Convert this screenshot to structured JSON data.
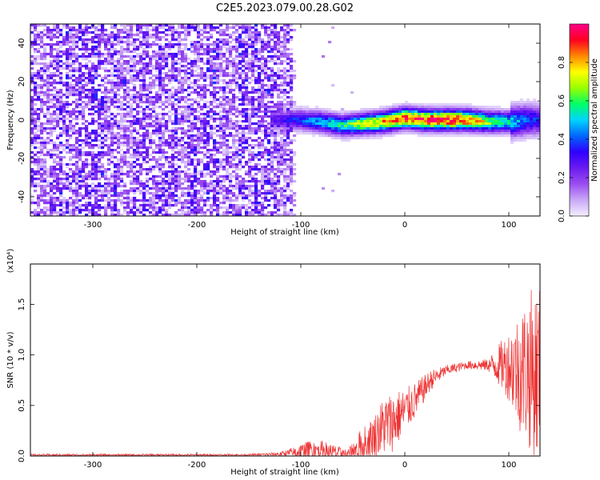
{
  "title": "C2E5.2023.079.00.28.G02",
  "chart_data": [
    {
      "type": "heatmap",
      "xlabel": "Height of straight line (km)",
      "ylabel": "Frequency (Hz)",
      "xlim": [
        -360,
        130
      ],
      "ylim": [
        -50,
        50
      ],
      "xticks": [
        -300,
        -200,
        -100,
        0,
        100
      ],
      "yticks": [
        -40,
        -20,
        0,
        20,
        40
      ],
      "colorbar": {
        "label": "Normalized spectral amplitude",
        "range": [
          0,
          1
        ],
        "ticks": [
          0.0,
          0.2,
          0.4,
          0.6,
          0.8
        ],
        "tick_labels": [
          "0.0",
          "0.2",
          "0.4",
          "0.6",
          "0.8"
        ],
        "colormap": [
          "#f4f0ff",
          "#c9a8f7",
          "#9b4df0",
          "#6a1bf0",
          "#2f00ff",
          "#0066ff",
          "#00d4ff",
          "#00ff66",
          "#99ff00",
          "#ffff00",
          "#ff8800",
          "#ff0022",
          "#ff0088"
        ]
      },
      "noise_region_x": [
        -360,
        -108
      ],
      "signal_band": {
        "x": [
          -128,
          -100,
          -80,
          -60,
          -40,
          -20,
          0,
          20,
          40,
          60,
          80,
          100,
          120,
          130
        ],
        "center_hz": [
          0,
          0,
          -1,
          -3,
          -2,
          -1,
          1,
          0,
          0,
          0,
          -1,
          -1,
          0,
          0
        ],
        "peak_amplitude": [
          0.25,
          0.4,
          0.5,
          0.6,
          0.75,
          0.85,
          0.95,
          1.0,
          1.0,
          0.95,
          0.7,
          0.55,
          0.4,
          0.35
        ]
      },
      "features": [
        {
          "x": -270,
          "y": 20,
          "amplitude": 0.35
        },
        {
          "x": -285,
          "y": -3,
          "amplitude": 0.2
        }
      ]
    },
    {
      "type": "line",
      "xlabel": "Height of straight line (km)",
      "ylabel": "SNR (10 * v/v)",
      "multiplier": "(x10⁴)",
      "xlim": [
        -360,
        130
      ],
      "ylim": [
        0,
        1.9
      ],
      "xticks": [
        -300,
        -200,
        -100,
        0,
        100
      ],
      "yticks": [
        0.0,
        0.5,
        1.0,
        1.5
      ],
      "ytick_labels": [
        "0.0",
        "0.5",
        "1.0",
        "1.5"
      ],
      "color": "#ee3333",
      "envelope": {
        "x": [
          -360,
          -300,
          -250,
          -200,
          -150,
          -120,
          -100,
          -85,
          -70,
          -55,
          -45,
          -30,
          -20,
          -10,
          0,
          10,
          25,
          40,
          60,
          80,
          100,
          110,
          120,
          130
        ],
        "base": [
          0.01,
          0.01,
          0.01,
          0.01,
          0.01,
          0.02,
          0.04,
          0.06,
          0.04,
          0.02,
          0.08,
          0.2,
          0.3,
          0.35,
          0.45,
          0.55,
          0.75,
          0.85,
          0.9,
          0.9,
          0.9,
          0.85,
          0.85,
          0.8
        ],
        "amp": [
          0.01,
          0.01,
          0.01,
          0.01,
          0.01,
          0.02,
          0.08,
          0.12,
          0.08,
          0.04,
          0.15,
          0.2,
          0.3,
          0.3,
          0.22,
          0.18,
          0.1,
          0.05,
          0.04,
          0.06,
          0.35,
          0.6,
          0.8,
          0.9
        ]
      }
    }
  ]
}
